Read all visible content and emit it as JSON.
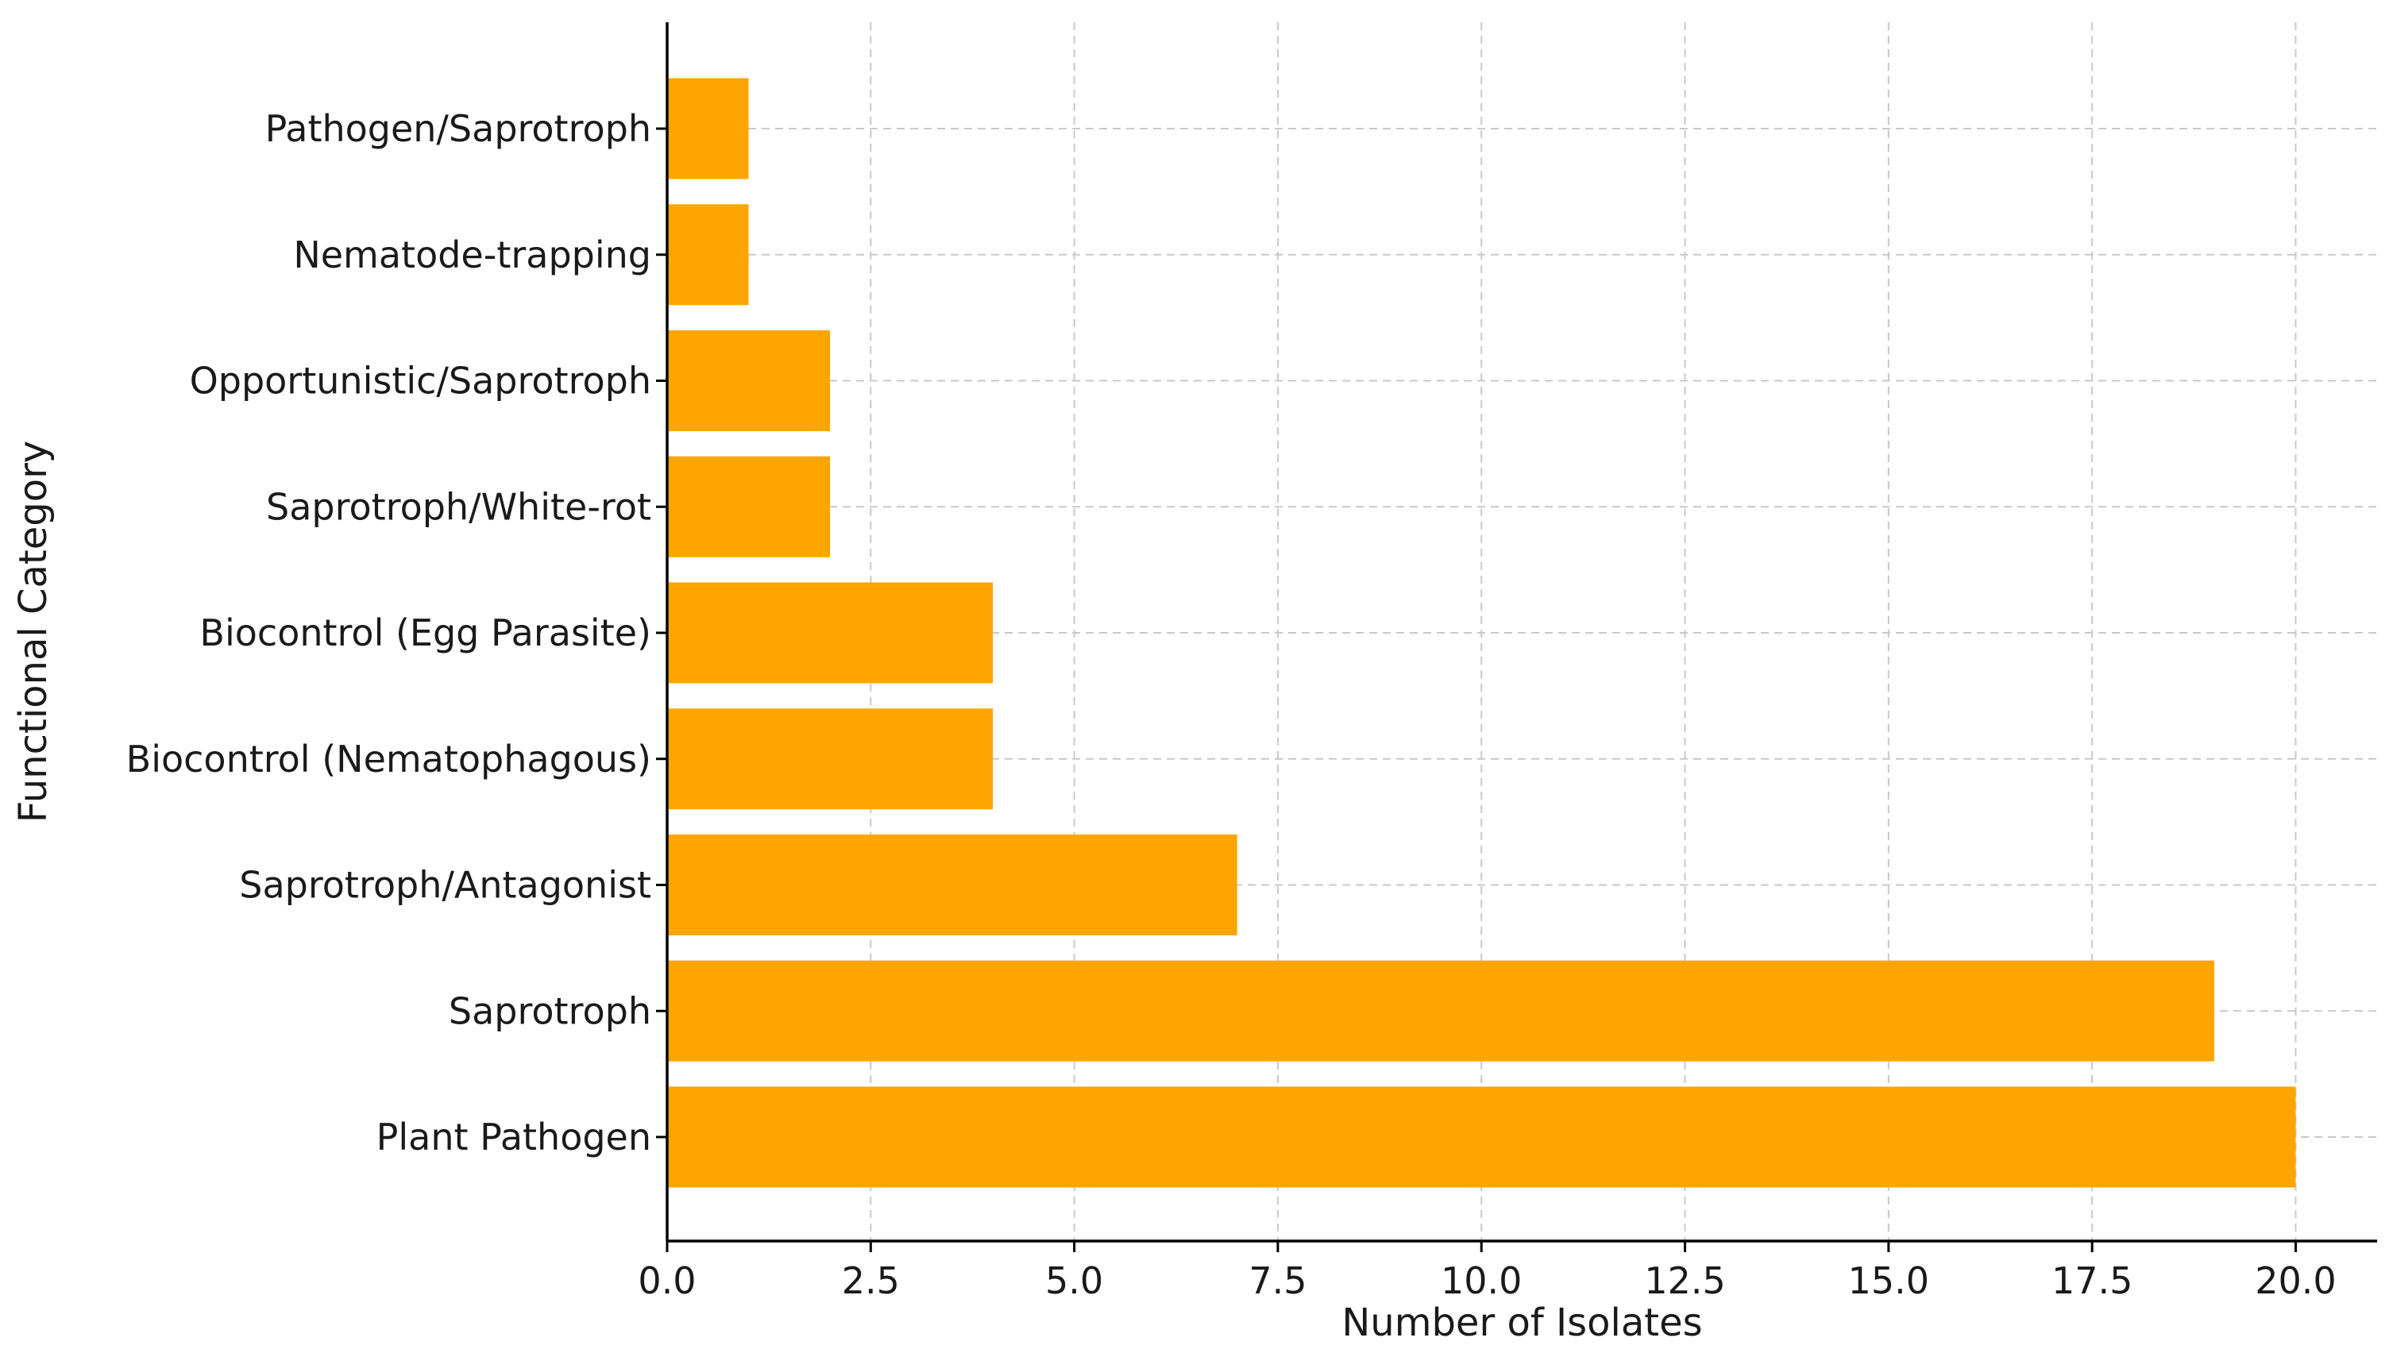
{
  "chart_data": {
    "type": "bar",
    "orientation": "horizontal",
    "title": "",
    "xlabel": "Number of Isolates",
    "ylabel": "Functional Category",
    "categories": [
      "Plant Pathogen",
      "Saprotroph",
      "Saprotroph/Antagonist",
      "Biocontrol (Nematophagous)",
      "Biocontrol (Egg Parasite)",
      "Saprotroph/White-rot",
      "Opportunistic/Saprotroph",
      "Nematode-trapping",
      "Pathogen/Saprotroph"
    ],
    "values": [
      20,
      19,
      7,
      4,
      4,
      2,
      2,
      1,
      1
    ],
    "xlim": [
      0,
      21
    ],
    "xticks": [
      0,
      2.5,
      5,
      7.5,
      10,
      12.5,
      15,
      17.5,
      20
    ],
    "xtick_labels": [
      "0.0",
      "2.5",
      "5.0",
      "7.5",
      "10.0",
      "12.5",
      "15.0",
      "17.5",
      "20.0"
    ],
    "bar_color": "#ffa500",
    "grid": true,
    "legend": "none"
  }
}
